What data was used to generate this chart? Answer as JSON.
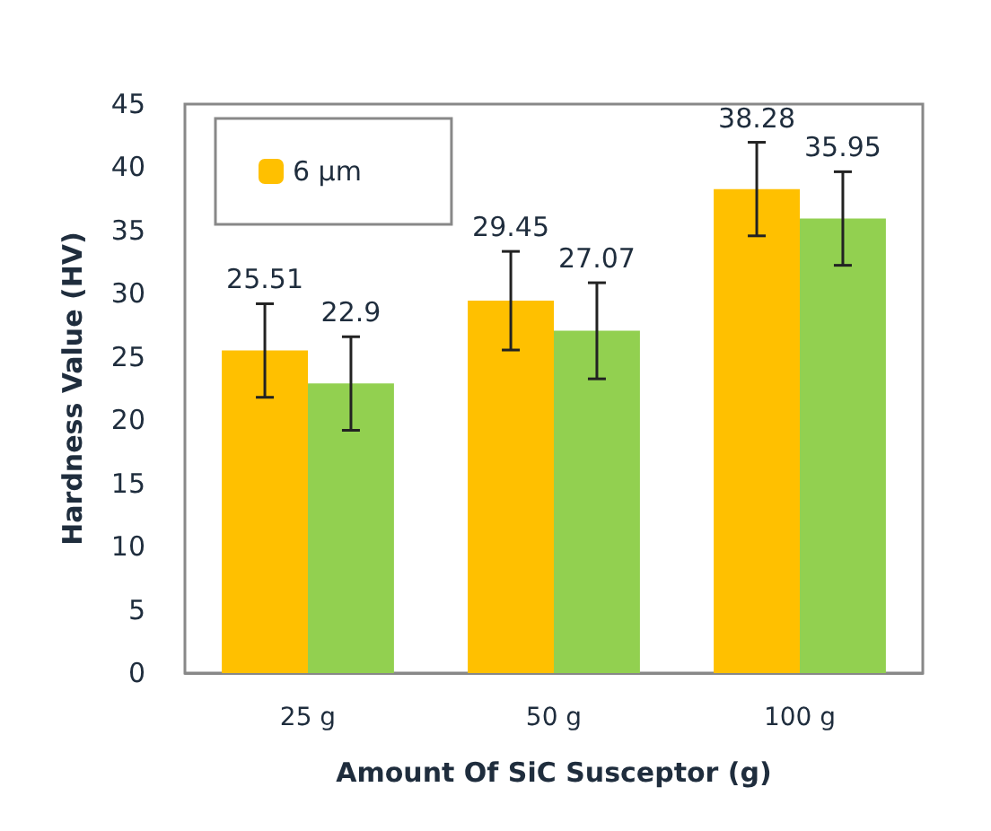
{
  "chart_data": {
    "type": "bar",
    "xlabel": "Amount Of SiC Susceptor (g)",
    "ylabel": "Hardness Value (HV)",
    "categories": [
      "25 g",
      "50 g",
      "100 g"
    ],
    "series": [
      {
        "name": "6 μm",
        "color": "#ffc000",
        "values": [
          25.51,
          29.45,
          38.28
        ],
        "errors": [
          3.7,
          3.9,
          3.7
        ]
      },
      {
        "color": "#92d050",
        "values": [
          22.9,
          27.07,
          35.95
        ],
        "errors": [
          3.7,
          3.8,
          3.7
        ]
      }
    ],
    "ylim": [
      0,
      45
    ],
    "yticks": [
      0,
      5,
      10,
      15,
      20,
      25,
      30,
      35,
      40,
      45
    ],
    "grid": false,
    "legend": "top left",
    "data_labels": true
  }
}
